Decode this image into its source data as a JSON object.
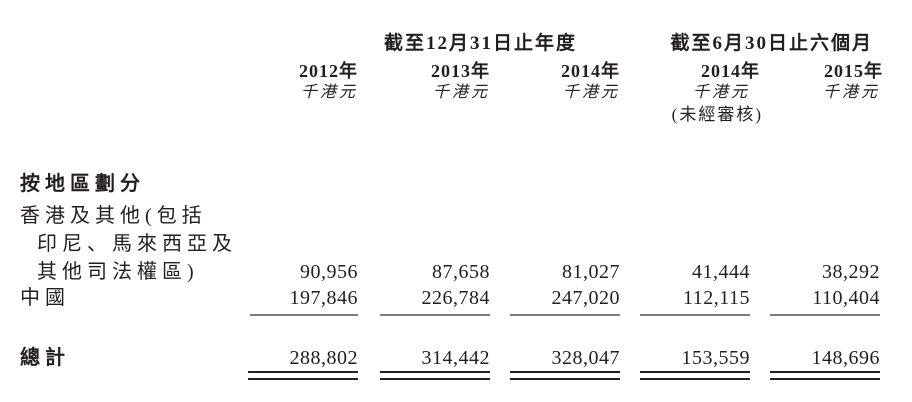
{
  "table": {
    "group1_title": "截至12月31日止年度",
    "group2_title": "截至6月30日止六個月",
    "years": [
      "2012年",
      "2013年",
      "2014年",
      "2014年",
      "2015年"
    ],
    "unit": "千港元",
    "unaudited": "(未經審核)",
    "section_title": "按地區劃分",
    "rows": [
      {
        "label_lines": [
          "香港及其他(包括",
          "印尼、馬來西亞及",
          "其他司法權區)"
        ],
        "values": [
          "90,956",
          "87,658",
          "81,027",
          "41,444",
          "38,292"
        ]
      },
      {
        "label": "中國",
        "values": [
          "197,846",
          "226,784",
          "247,020",
          "112,115",
          "110,404"
        ]
      }
    ],
    "total": {
      "label": "總計",
      "values": [
        "288,802",
        "314,442",
        "328,047",
        "153,559",
        "148,696"
      ]
    },
    "colors": {
      "text": "#231f20",
      "single_rule": "#7d7d7d",
      "double_rule": "#231f20"
    }
  }
}
